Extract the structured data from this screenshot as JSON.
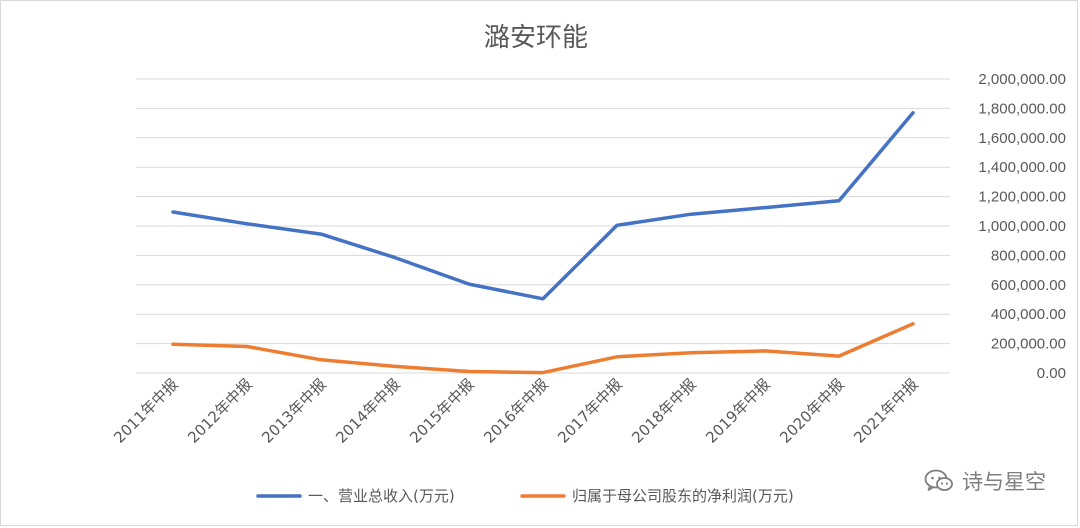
{
  "chart_data": {
    "type": "line",
    "title": "潞安环能",
    "categories": [
      "2011年中报",
      "2012年中报",
      "2013年中报",
      "2014年中报",
      "2015年中报",
      "2016年中报",
      "2017年中报",
      "2018年中报",
      "2019年中报",
      "2020年中报",
      "2021年中报"
    ],
    "series": [
      {
        "name": "一、营业总收入(万元)",
        "color": "#4472c4",
        "values": [
          1095000,
          1015000,
          945000,
          785000,
          605000,
          505000,
          1005000,
          1080000,
          1125000,
          1172000,
          1770000
        ]
      },
      {
        "name": "归属于母公司股东的净利润(万元)",
        "color": "#ed7d31",
        "values": [
          195000,
          180000,
          90000,
          45000,
          10000,
          3000,
          110000,
          138000,
          150000,
          115000,
          335000
        ]
      }
    ],
    "y_ticks": [
      "0.00",
      "200,000.00",
      "400,000.00",
      "600,000.00",
      "800,000.00",
      "1,000,000.00",
      "1,200,000.00",
      "1,400,000.00",
      "1,600,000.00",
      "1,800,000.00",
      "2,000,000.00"
    ],
    "ylim": [
      0,
      2000000
    ],
    "y_axis_side": "right",
    "grid": true,
    "legend_position": "bottom"
  },
  "watermark": {
    "text": "诗与星空",
    "icon": "wechat-icon"
  }
}
